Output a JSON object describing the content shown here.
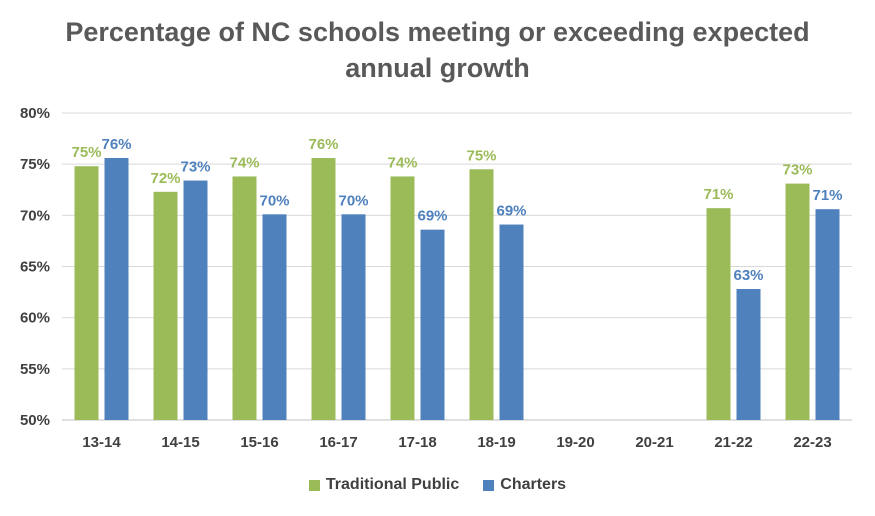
{
  "chart_data": {
    "type": "bar",
    "title": "Percentage of NC schools meeting or exceeding expected annual growth",
    "categories": [
      "13-14",
      "14-15",
      "15-16",
      "16-17",
      "17-18",
      "18-19",
      "19-20",
      "20-21",
      "21-22",
      "22-23"
    ],
    "series": [
      {
        "name": "Traditional Public",
        "color": "#9BBB59",
        "values": [
          74.8,
          72.3,
          73.8,
          75.6,
          73.8,
          74.5,
          null,
          null,
          70.7,
          73.1
        ],
        "labels": [
          "75%",
          "72%",
          "74%",
          "76%",
          "74%",
          "75%",
          "",
          "",
          "71%",
          "73%"
        ]
      },
      {
        "name": "Charters",
        "color": "#4F81BD",
        "values": [
          75.6,
          73.4,
          70.1,
          70.1,
          68.6,
          69.1,
          null,
          null,
          62.8,
          70.6
        ],
        "labels": [
          "76%",
          "73%",
          "70%",
          "70%",
          "69%",
          "69%",
          "",
          "",
          "63%",
          "71%"
        ]
      }
    ],
    "ylim": [
      50,
      80
    ],
    "yticks": [
      "50%",
      "55%",
      "60%",
      "65%",
      "70%",
      "75%",
      "80%"
    ],
    "grid": true,
    "legend_position": "bottom"
  }
}
